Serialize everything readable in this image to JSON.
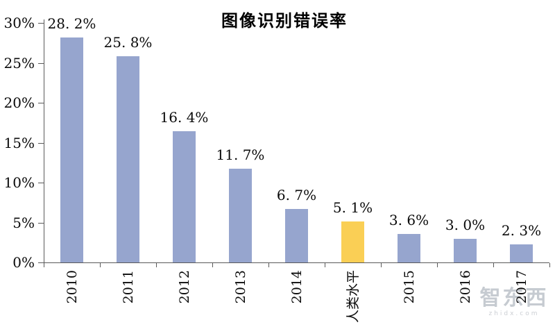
{
  "title": "图像识别错误率",
  "chart_data": {
    "type": "bar",
    "title": "图像识别错误率",
    "categories": [
      "2010",
      "2011",
      "2012",
      "2013",
      "2014",
      "人类水平",
      "2015",
      "2016",
      "2017"
    ],
    "values": [
      28.2,
      25.8,
      16.4,
      11.7,
      6.7,
      5.1,
      3.6,
      3.0,
      2.3
    ],
    "value_labels": [
      "28. 2%",
      "25. 8%",
      "16. 4%",
      "11. 7%",
      "6. 7%",
      "5. 1%",
      "3. 6%",
      "3. 0%",
      "2. 3%"
    ],
    "highlight_index": 5,
    "highlight_category": "人类水平",
    "colors": {
      "bar": "#96A5CE",
      "highlight": "#FACF55",
      "axis": "#595959",
      "text": "#0a0a0a"
    },
    "y_axis": {
      "tick_labels": [
        "0%",
        "5%",
        "10%",
        "15%",
        "20%",
        "25%",
        "30%"
      ],
      "tick_values": [
        0,
        5,
        10,
        15,
        20,
        25,
        30
      ],
      "range": [
        0,
        30
      ]
    },
    "xlabel": "",
    "ylabel": "",
    "grid": false,
    "legend": null,
    "x_labels_rotated": true
  },
  "watermark": {
    "logo": "智东西",
    "domain": "zhidx.com"
  }
}
